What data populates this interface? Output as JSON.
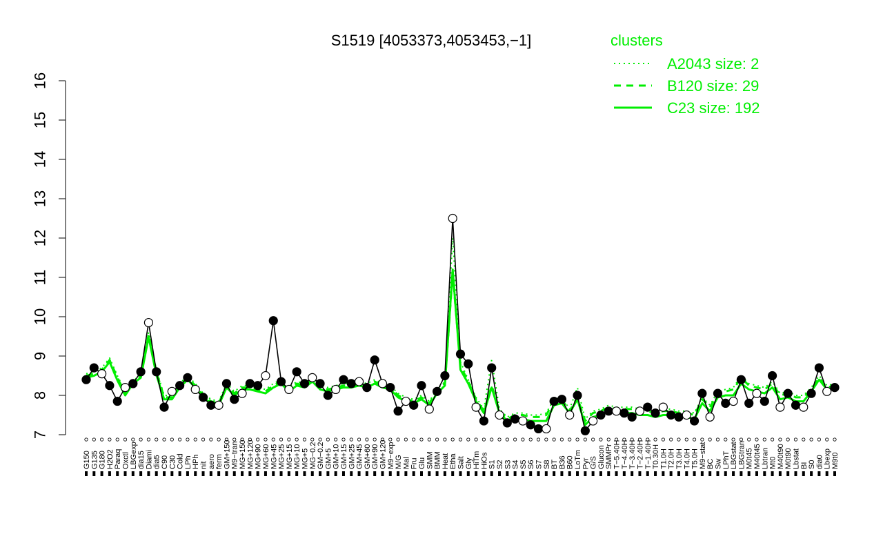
{
  "chart_data": {
    "type": "line",
    "title": "S1519 [4053373,4053453,−1]",
    "xlabel": "",
    "ylabel": "",
    "ylim": [
      7,
      16
    ],
    "yticks": [
      7,
      8,
      9,
      10,
      11,
      12,
      13,
      14,
      15,
      16
    ],
    "ytick_labels": [
      "7",
      "8",
      "9",
      "10",
      "11",
      "12",
      "13",
      "14",
      "15",
      "16"
    ],
    "grid": false,
    "legend": {
      "title": "clusters",
      "placement": "top-right",
      "entries": [
        {
          "label": "A2043 size: 2",
          "style": "dotted"
        },
        {
          "label": "B120 size: 29",
          "style": "dashed"
        },
        {
          "label": "C23 size: 192",
          "style": "solid"
        }
      ]
    },
    "x_labels": [
      "G150",
      "G135",
      "G180",
      "H2O2",
      "Paraq",
      "Oxctl",
      "LBGexp",
      "dia15",
      "Diami",
      "dia5",
      "C90",
      "C30",
      "Cold",
      "LPh",
      "HPh",
      "nit",
      "aero",
      "ferm",
      "GM+150",
      "M9−tran",
      "MG+150",
      "MG+120",
      "MG+90",
      "MG+60",
      "MG+45",
      "MG+25",
      "MG+15",
      "MG+10",
      "MG+5",
      "MG−0.2",
      "GM−0.2",
      "GM+5",
      "GM+10",
      "GM+15",
      "GM+25",
      "GM+45",
      "GM+60",
      "GM+90",
      "GM+120",
      "M9−exp",
      "M/G",
      "Mal",
      "Fru",
      "Glu",
      "SMM",
      "BMM",
      "Heat",
      "Etha",
      "Salt",
      "Gly",
      "HiTm",
      "HiOs",
      "S1",
      "S2",
      "S3",
      "S4",
      "S5",
      "S6",
      "S7",
      "S8",
      "BT",
      "B36",
      "B60",
      "LoTm",
      "Pyr",
      "G/S",
      "Glucon",
      "SMMPr",
      "T−5.40H",
      "T−4.40H",
      "T−3.40H",
      "T−2.40H",
      "T−1.40H",
      "T0.30H",
      "T1.0H",
      "T2.0H",
      "T3.0H",
      "T4.0H",
      "T5.0H",
      "M9−stat",
      "BC",
      "Sw",
      "LPhT",
      "LBGstat",
      "LBGtran",
      "M0t45",
      "M40t45",
      "Lbtran",
      "Mt0",
      "M40t90",
      "M0t90",
      "Lbstat",
      "BI",
      "S0",
      "dia0",
      "Lbexp",
      "M9t0"
    ],
    "series": [
      {
        "style": "solid",
        "values": [
          8.45,
          8.5,
          8.6,
          8.85,
          8.38,
          8.0,
          8.3,
          8.45,
          9.48,
          8.52,
          7.9,
          7.9,
          8.2,
          8.4,
          8.2,
          7.95,
          7.8,
          7.75,
          8.2,
          8.0,
          8.15,
          8.15,
          8.1,
          8.05,
          8.2,
          8.3,
          8.1,
          8.25,
          8.2,
          8.35,
          8.15,
          8.1,
          8.15,
          8.2,
          8.2,
          8.25,
          8.2,
          8.3,
          8.2,
          8.15,
          7.95,
          7.85,
          7.8,
          7.9,
          7.75,
          8.05,
          8.25,
          11.2,
          8.65,
          8.3,
          7.85,
          7.55,
          8.2,
          7.55,
          7.35,
          7.45,
          7.4,
          7.35,
          7.35,
          7.35,
          7.75,
          7.8,
          7.55,
          7.9,
          7.25,
          7.45,
          7.5,
          7.6,
          7.55,
          7.55,
          7.55,
          7.5,
          7.5,
          7.45,
          7.5,
          7.5,
          7.45,
          7.45,
          7.4,
          7.8,
          7.6,
          7.95,
          8.0,
          8.0,
          8.3,
          8.15,
          8.1,
          8.05,
          8.2,
          7.9,
          7.95,
          7.85,
          7.85,
          8.1,
          8.4,
          8.15,
          8.2
        ]
      },
      {
        "style": "dashed",
        "values": [
          8.5,
          8.55,
          8.65,
          8.9,
          8.45,
          8.05,
          8.3,
          8.5,
          9.55,
          8.6,
          7.95,
          7.95,
          8.25,
          8.45,
          8.25,
          8.0,
          7.85,
          7.8,
          8.25,
          8.05,
          8.2,
          8.2,
          8.15,
          8.1,
          8.25,
          8.35,
          8.15,
          8.3,
          8.25,
          8.4,
          8.2,
          8.15,
          8.2,
          8.25,
          8.25,
          8.3,
          8.25,
          8.35,
          8.25,
          8.2,
          8.0,
          7.9,
          7.85,
          7.95,
          7.8,
          8.1,
          8.3,
          11.1,
          8.75,
          8.35,
          7.9,
          7.6,
          8.25,
          7.6,
          7.4,
          7.5,
          7.5,
          7.45,
          7.45,
          7.5,
          7.85,
          7.9,
          7.6,
          7.95,
          7.35,
          7.55,
          7.6,
          7.7,
          7.65,
          7.65,
          7.65,
          7.6,
          7.6,
          7.55,
          7.6,
          7.6,
          7.55,
          7.55,
          7.5,
          7.9,
          7.7,
          8.05,
          8.1,
          8.15,
          8.45,
          8.25,
          8.2,
          8.15,
          8.3,
          8.0,
          8.05,
          7.95,
          7.95,
          8.15,
          8.45,
          8.2,
          8.25
        ]
      },
      {
        "style": "dotted",
        "values": [
          8.55,
          8.6,
          8.7,
          8.95,
          8.5,
          8.1,
          8.35,
          8.55,
          9.6,
          8.65,
          8.0,
          8.0,
          8.3,
          8.5,
          8.3,
          8.05,
          7.9,
          7.85,
          8.3,
          8.1,
          8.25,
          8.25,
          8.2,
          8.15,
          8.3,
          8.4,
          8.2,
          8.35,
          8.3,
          8.45,
          8.25,
          8.2,
          8.25,
          8.3,
          8.3,
          8.35,
          8.3,
          8.4,
          8.3,
          8.25,
          8.05,
          7.95,
          7.9,
          8.0,
          7.85,
          8.15,
          8.35,
          12.0,
          8.85,
          8.4,
          7.95,
          7.65,
          8.9,
          7.65,
          7.45,
          7.55,
          7.55,
          7.5,
          7.5,
          7.55,
          7.9,
          7.95,
          7.65,
          8.2,
          7.4,
          7.6,
          7.65,
          7.75,
          7.7,
          7.7,
          7.7,
          7.65,
          7.65,
          7.6,
          7.65,
          7.65,
          7.6,
          7.6,
          7.55,
          7.95,
          7.75,
          8.1,
          8.15,
          8.2,
          8.5,
          8.3,
          8.25,
          8.2,
          8.35,
          8.05,
          8.1,
          8.0,
          8.0,
          8.2,
          8.5,
          8.25,
          8.3
        ]
      },
      {
        "name": "",
        "style": "points",
        "values": [
          8.4,
          8.7,
          8.55,
          8.25,
          7.85,
          8.2,
          8.3,
          8.6,
          9.85,
          8.6,
          7.7,
          8.1,
          8.25,
          8.45,
          8.15,
          7.95,
          7.75,
          7.75,
          8.3,
          7.9,
          8.05,
          8.3,
          8.25,
          8.5,
          9.9,
          8.35,
          8.15,
          8.6,
          8.3,
          8.45,
          8.3,
          8.0,
          8.15,
          8.4,
          8.3,
          8.35,
          8.2,
          8.9,
          8.3,
          8.2,
          7.6,
          7.85,
          7.75,
          8.25,
          7.65,
          8.1,
          8.5,
          12.5,
          9.05,
          8.8,
          7.7,
          7.35,
          8.7,
          7.5,
          7.3,
          7.4,
          7.35,
          7.25,
          7.15,
          7.15,
          7.85,
          7.9,
          7.5,
          8.0,
          7.1,
          7.35,
          7.5,
          7.6,
          7.6,
          7.55,
          7.45,
          7.6,
          7.7,
          7.55,
          7.7,
          7.5,
          7.45,
          7.5,
          7.35,
          8.05,
          7.45,
          8.05,
          7.8,
          7.85,
          8.4,
          7.8,
          8.05,
          7.85,
          8.5,
          7.7,
          8.05,
          7.75,
          7.7,
          8.05,
          8.7,
          8.1,
          8.2
        ]
      }
    ]
  }
}
